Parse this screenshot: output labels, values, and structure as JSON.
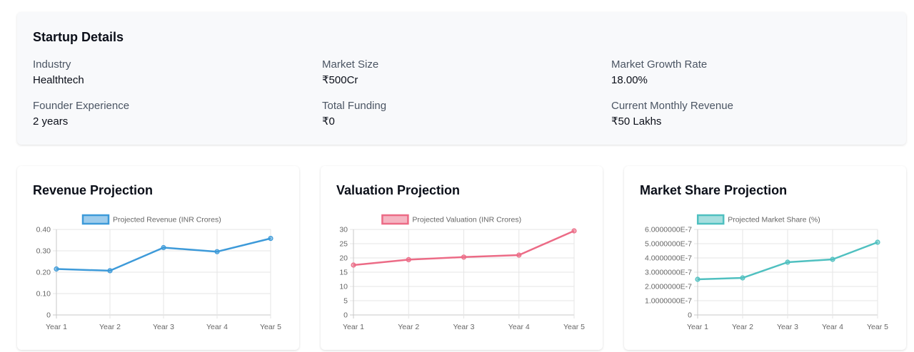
{
  "startup_details": {
    "title": "Startup Details",
    "fields": [
      {
        "label": "Industry",
        "value": "Healthtech"
      },
      {
        "label": "Market Size",
        "value": "₹500Cr"
      },
      {
        "label": "Market Growth Rate",
        "value": "18.00%"
      },
      {
        "label": "Founder Experience",
        "value": "2 years"
      },
      {
        "label": "Total Funding",
        "value": "₹0"
      },
      {
        "label": "Current Monthly Revenue",
        "value": "₹50 Lakhs"
      }
    ]
  },
  "charts": {
    "revenue": {
      "title": "Revenue Projection"
    },
    "valuation": {
      "title": "Valuation Projection"
    },
    "market_share": {
      "title": "Market Share Projection"
    }
  },
  "chart_data": [
    {
      "type": "line",
      "title": "Revenue Projection",
      "categories": [
        "Year 1",
        "Year 2",
        "Year 3",
        "Year 4",
        "Year 5"
      ],
      "series": [
        {
          "name": "Projected Revenue (INR Crores)",
          "values": [
            0.215,
            0.207,
            0.315,
            0.296,
            0.358
          ],
          "color": "#3d9ad9"
        }
      ],
      "ylim": [
        0,
        0.4
      ],
      "yticks": [
        "0",
        "0.10",
        "0.20",
        "0.30",
        "0.40"
      ],
      "legend": "top-center",
      "grid": true
    },
    {
      "type": "line",
      "title": "Valuation Projection",
      "categories": [
        "Year 1",
        "Year 2",
        "Year 3",
        "Year 4",
        "Year 5"
      ],
      "series": [
        {
          "name": "Projected Valuation (INR Crores)",
          "values": [
            17.5,
            19.4,
            20.3,
            21.0,
            29.5
          ],
          "color": "#ec6b86"
        }
      ],
      "ylim": [
        0,
        30
      ],
      "yticks": [
        "0",
        "5",
        "10",
        "15",
        "20",
        "25",
        "30"
      ],
      "legend": "top-center",
      "grid": true
    },
    {
      "type": "line",
      "title": "Market Share Projection",
      "categories": [
        "Year 1",
        "Year 2",
        "Year 3",
        "Year 4",
        "Year 5"
      ],
      "series": [
        {
          "name": "Projected Market Share (%)",
          "values": [
            2.5e-07,
            2.6e-07,
            3.7e-07,
            3.9e-07,
            5.1e-07
          ],
          "color": "#4fc0c0"
        }
      ],
      "ylim": [
        0,
        6e-07
      ],
      "yticks": [
        "0",
        "1.0000000E-7",
        "2.0000000E-7",
        "3.0000000E-7",
        "4.0000000E-7",
        "5.0000000E-7",
        "6.0000000E-7"
      ],
      "legend": "top-center",
      "grid": true
    }
  ]
}
